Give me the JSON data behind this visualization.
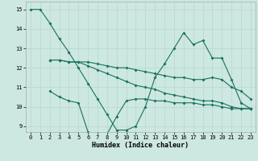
{
  "xlabel": "Humidex (Indice chaleur)",
  "xlim": [
    -0.5,
    23.5
  ],
  "ylim": [
    8.7,
    15.4
  ],
  "yticks": [
    9,
    10,
    11,
    12,
    13,
    14,
    15
  ],
  "xticks": [
    0,
    1,
    2,
    3,
    4,
    5,
    6,
    7,
    8,
    9,
    10,
    11,
    12,
    13,
    14,
    15,
    16,
    17,
    18,
    19,
    20,
    21,
    22,
    23
  ],
  "bg_color": "#cce8e0",
  "line_color": "#1a7060",
  "grid_color": "#b8d8d0",
  "line1_x": [
    0,
    1,
    2,
    3,
    4,
    5,
    6,
    7,
    8,
    9,
    10,
    11,
    12,
    13,
    14,
    15,
    16,
    17,
    18,
    19,
    20,
    21,
    22,
    23
  ],
  "line1_y": [
    15.0,
    15.0,
    14.3,
    13.5,
    12.8,
    12.0,
    11.2,
    10.4,
    9.6,
    8.8,
    8.8,
    9.0,
    10.0,
    11.5,
    12.2,
    13.0,
    13.8,
    13.2,
    13.4,
    12.5,
    12.5,
    11.4,
    10.2,
    9.9
  ],
  "line2_x": [
    2,
    3,
    4,
    5,
    6,
    7,
    8,
    9,
    10,
    11,
    12,
    13,
    14,
    15,
    16,
    17,
    18,
    19,
    20,
    21,
    22,
    23
  ],
  "line2_y": [
    12.4,
    12.4,
    12.3,
    12.3,
    12.3,
    12.2,
    12.1,
    12.0,
    12.0,
    11.9,
    11.8,
    11.7,
    11.6,
    11.5,
    11.5,
    11.4,
    11.4,
    11.5,
    11.4,
    11.0,
    10.8,
    10.4
  ],
  "line3_x": [
    2,
    3,
    4,
    5,
    6,
    7,
    8,
    9,
    10,
    11,
    12,
    13,
    14,
    15,
    16,
    17,
    18,
    19,
    20,
    21,
    22,
    23
  ],
  "line3_y": [
    12.4,
    12.4,
    12.3,
    12.3,
    12.1,
    11.9,
    11.7,
    11.5,
    11.3,
    11.1,
    11.0,
    10.9,
    10.7,
    10.6,
    10.5,
    10.4,
    10.3,
    10.3,
    10.2,
    10.0,
    9.9,
    9.9
  ],
  "line4_x": [
    2,
    3,
    4,
    5,
    6,
    7,
    8,
    9,
    10,
    11,
    12,
    13,
    14,
    15,
    16,
    17,
    18,
    19,
    20,
    21,
    22,
    23
  ],
  "line4_y": [
    10.8,
    10.5,
    10.3,
    10.2,
    8.7,
    8.6,
    8.6,
    9.5,
    10.3,
    10.4,
    10.4,
    10.3,
    10.3,
    10.2,
    10.2,
    10.2,
    10.1,
    10.1,
    10.0,
    9.9,
    9.9,
    9.9
  ]
}
